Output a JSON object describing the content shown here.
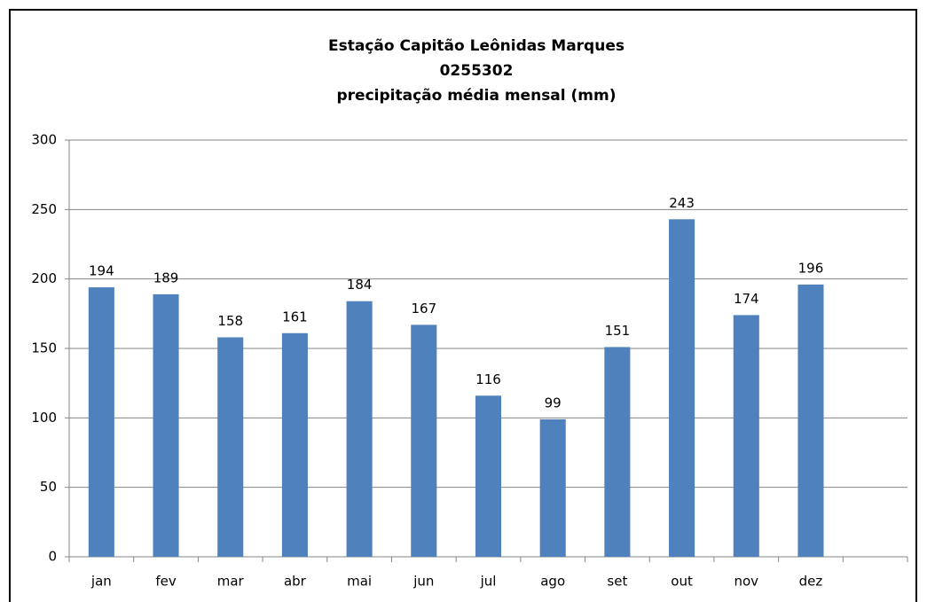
{
  "chart_data": {
    "type": "bar",
    "title": [
      "Estação Capitão Leônidas Marques",
      "0255302",
      "precipitação média mensal (mm)"
    ],
    "categories": [
      "jan",
      "fev",
      "mar",
      "abr",
      "mai",
      "jun",
      "jul",
      "ago",
      "set",
      "out",
      "nov",
      "dez",
      null
    ],
    "values": [
      194,
      189,
      158,
      161,
      184,
      167,
      116,
      99,
      151,
      243,
      174,
      196,
      null
    ],
    "color": "#4f81bd",
    "ylim": [
      0,
      300
    ],
    "yticks": [
      0,
      50,
      100,
      150,
      200,
      250,
      300
    ],
    "grid": true
  }
}
